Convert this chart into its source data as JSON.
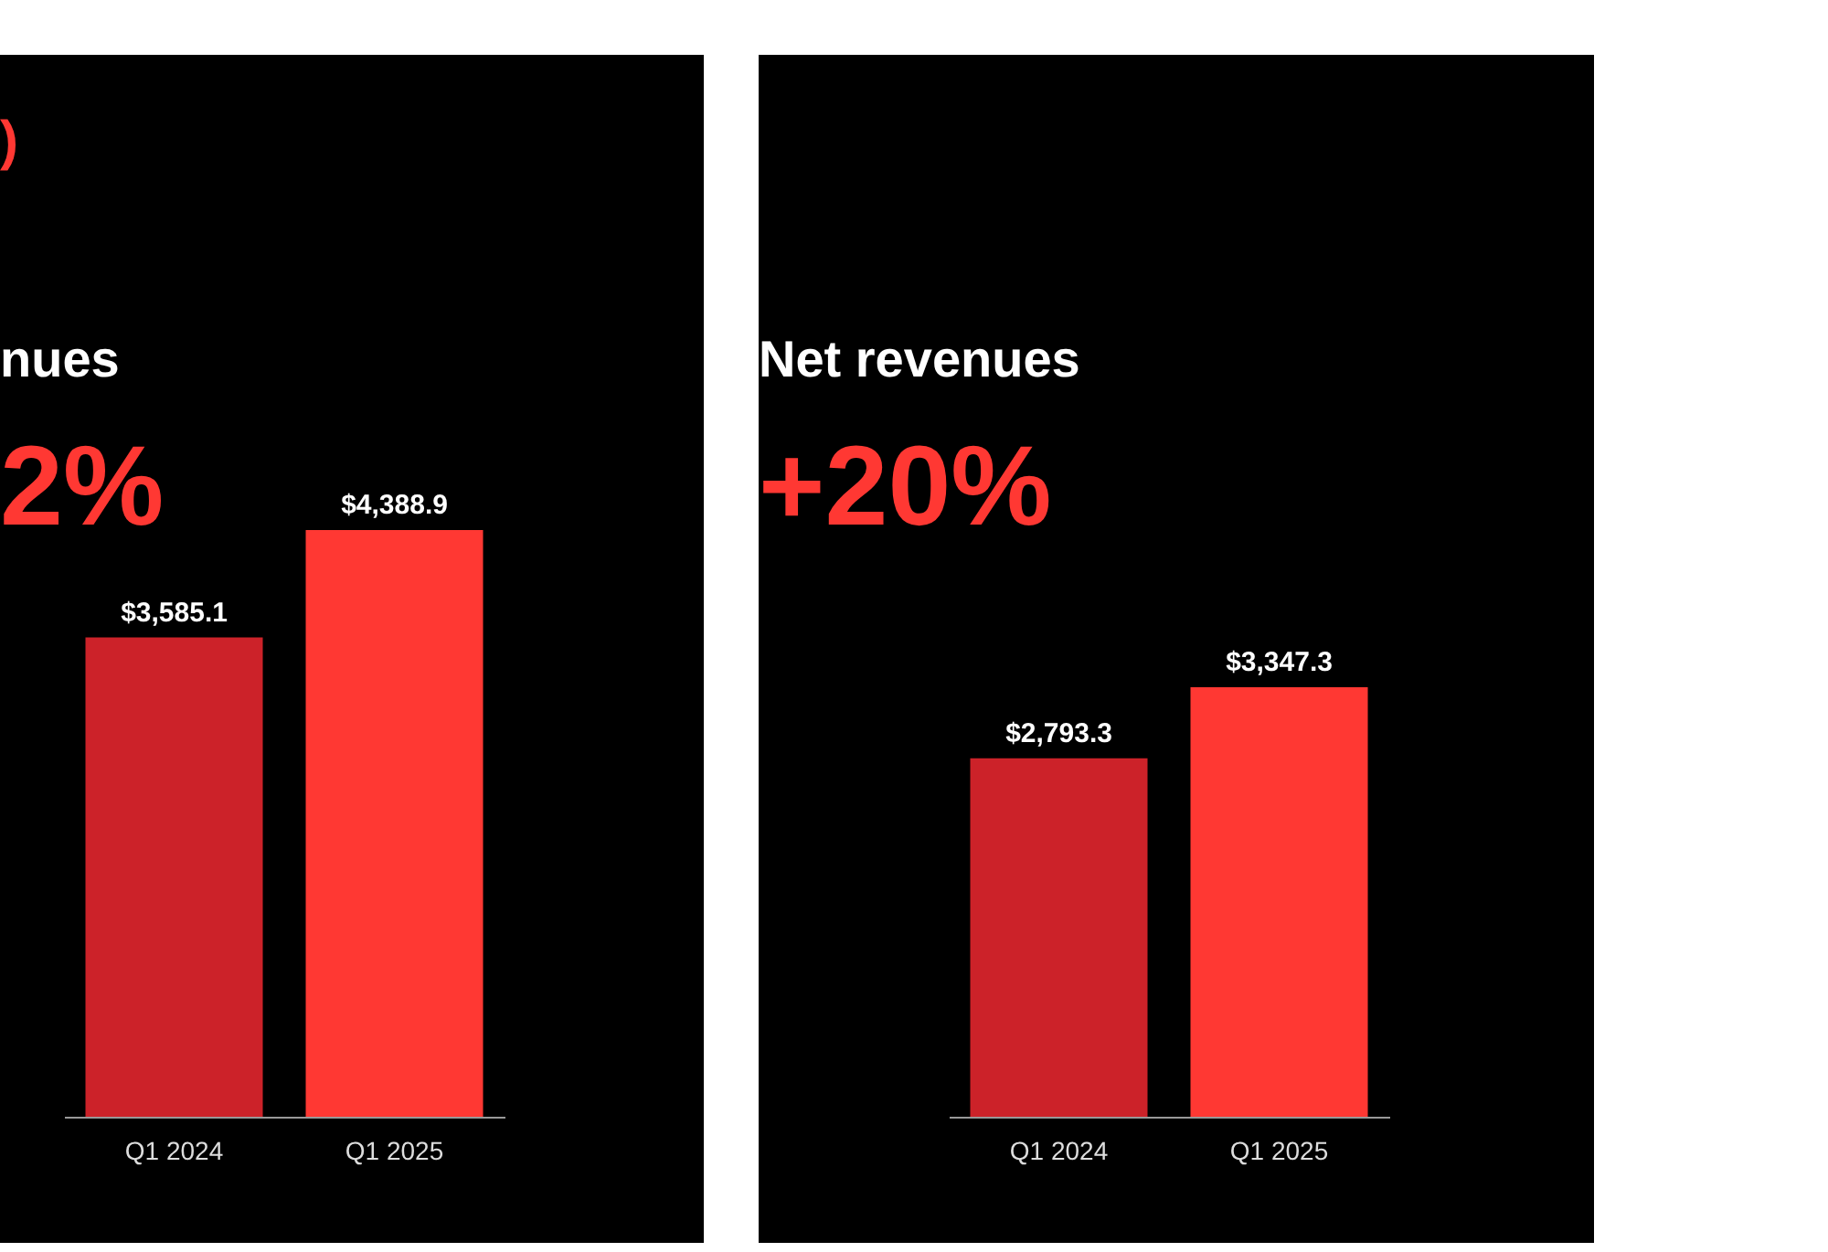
{
  "chart_data": [
    {
      "type": "bar",
      "title": "nues",
      "subtitle": "2%",
      "annotations": [
        ")"
      ],
      "categories": [
        "Q1 2024",
        "Q1 2025"
      ],
      "values": [
        3585.1,
        4388.9
      ],
      "colors": [
        "#cc2229",
        "#ff3833"
      ],
      "value_labels": [
        "$3,585.1",
        "$4,388.9"
      ],
      "tick_labels": "x",
      "grid": false,
      "legend": false
    },
    {
      "type": "bar",
      "title": "Net revenues",
      "subtitle": "+20%",
      "categories": [
        "Q1 2024",
        "Q1 2025"
      ],
      "values": [
        2793.3,
        3347.3
      ],
      "colors": [
        "#cc2229",
        "#ff3833"
      ],
      "value_labels": [
        "$2,793.3",
        "$3,347.3"
      ],
      "tick_labels": "x",
      "grid": false,
      "legend": false
    }
  ]
}
